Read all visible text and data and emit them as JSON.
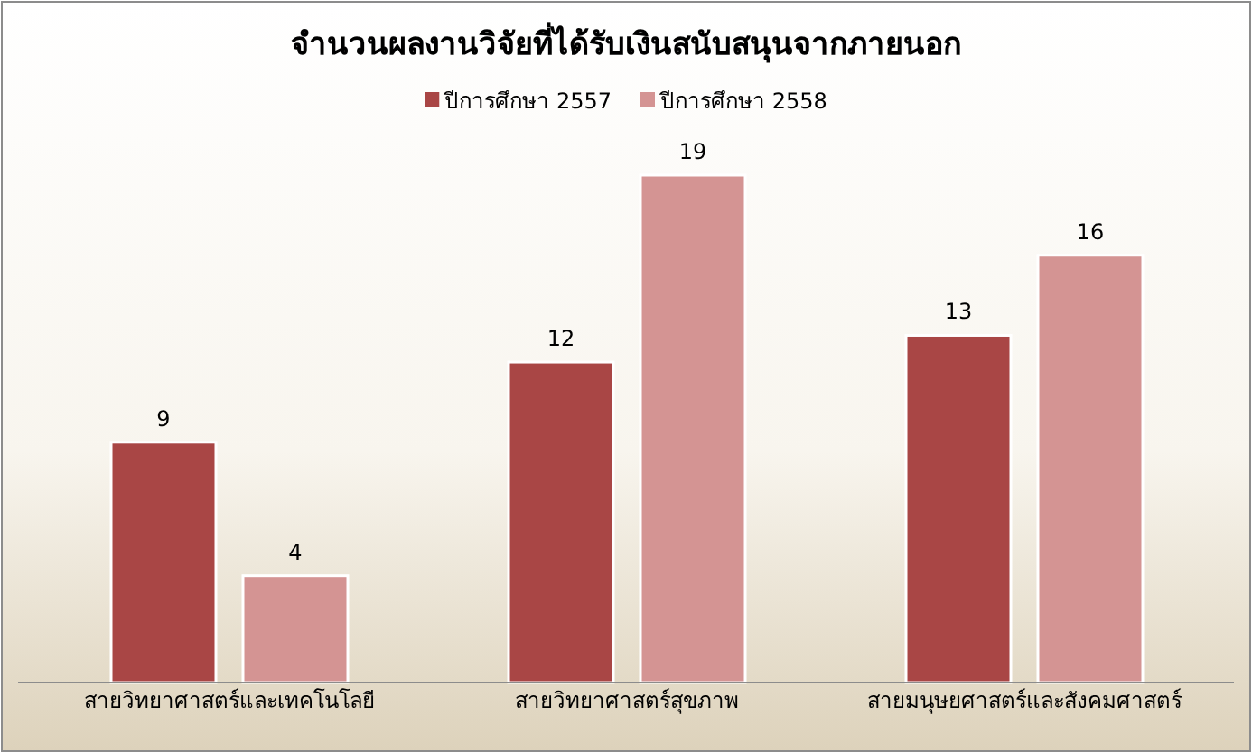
{
  "chart_data": {
    "type": "bar",
    "title": "จำนวนผลงานวิจัยที่ได้รับเงินสนับสนุนจากภายนอก",
    "categories": [
      "สายวิทยาศาสตร์และเทคโนโลยี",
      "สายวิทยาศาสตร์สุขภาพ",
      "สายมนุษยศาสตร์และสังคมศาสตร์"
    ],
    "series": [
      {
        "name": "ปีการศึกษา 2557",
        "color": "#a94645",
        "values": [
          9,
          12,
          13
        ]
      },
      {
        "name": "ปีการศึกษา 2558",
        "color": "#d49493",
        "values": [
          4,
          19,
          16
        ]
      }
    ],
    "data_labels": true,
    "legend": "top"
  }
}
